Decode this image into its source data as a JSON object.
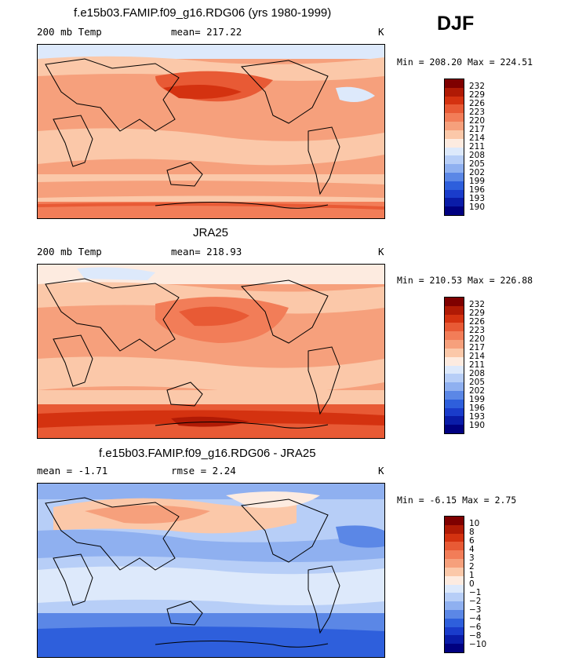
{
  "header": {
    "season": "DJF"
  },
  "panels": [
    {
      "title": "f.e15b03.FAMIP.f09_g16.RDG06 (yrs 1980-1999)",
      "left_label": "200 mb Temp",
      "center_label": "mean= 217.22",
      "units": "K",
      "minmax": "Min = 208.20 Max = 224.51",
      "scheme": "model"
    },
    {
      "title": "JRA25",
      "left_label": "200 mb Temp",
      "center_label": "mean= 218.93",
      "units": "K",
      "minmax": "Min = 210.53 Max = 226.88",
      "scheme": "obs"
    },
    {
      "title": "f.e15b03.FAMIP.f09_g16.RDG06 - JRA25",
      "left_label": "mean =  -1.71",
      "center_label": "rmse =   2.24",
      "units": "K",
      "minmax": "Min =  -6.15 Max =   2.75",
      "scheme": "diff"
    }
  ],
  "colorbars": [
    {
      "labels": [
        "232",
        "229",
        "226",
        "223",
        "220",
        "217",
        "214",
        "211",
        "208",
        "205",
        "202",
        "199",
        "196",
        "193",
        "190"
      ]
    },
    {
      "labels": [
        "232",
        "229",
        "226",
        "223",
        "220",
        "217",
        "214",
        "211",
        "208",
        "205",
        "202",
        "199",
        "196",
        "193",
        "190"
      ]
    },
    {
      "labels": [
        "10",
        "8",
        "6",
        "4",
        "3",
        "2",
        "1",
        "0",
        "−1",
        "−2",
        "−3",
        "−4",
        "−6",
        "−8",
        "−10"
      ]
    }
  ],
  "colors": {
    "palette": [
      "#7f0000",
      "#b01a05",
      "#d43210",
      "#e85a35",
      "#f27d58",
      "#f6a07c",
      "#fbc8a9",
      "#fdebe0",
      "#dde9fb",
      "#b7cef7",
      "#8fb0f0",
      "#5b87e6",
      "#2e5fdc",
      "#1a3ccb",
      "#0a1ca8",
      "#000080"
    ]
  }
}
